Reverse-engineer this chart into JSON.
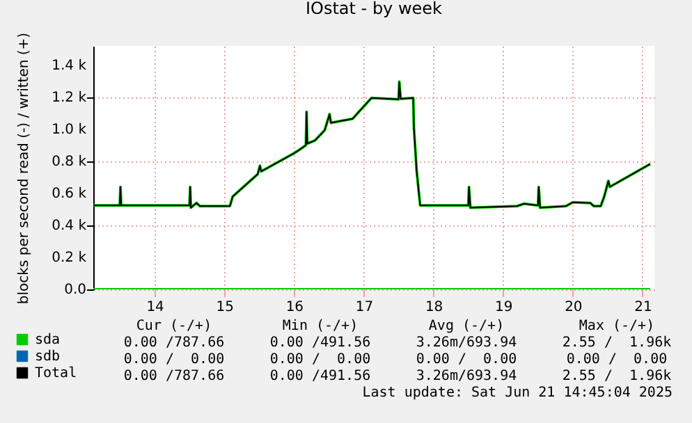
{
  "chart_data": {
    "type": "line",
    "title": "IOstat - by week",
    "ylabel": "blocks per second read (-) / written (+)",
    "xlim": [
      13.12,
      21.17
    ],
    "xticks": [
      14,
      15,
      16,
      17,
      18,
      19,
      20,
      21
    ],
    "ylim": [
      0,
      1520
    ],
    "yticks": [
      {
        "value": 0,
        "label": "0.0"
      },
      {
        "value": 200,
        "label": "0.2 k"
      },
      {
        "value": 400,
        "label": "0.4 k"
      },
      {
        "value": 600,
        "label": "0.6 k"
      },
      {
        "value": 800,
        "label": "0.8 k"
      },
      {
        "value": 1000,
        "label": "1.0 k"
      },
      {
        "value": 1200,
        "label": "1.2 k"
      },
      {
        "value": 1400,
        "label": "1.4 k"
      }
    ],
    "grid": true,
    "legend": "bottom left",
    "marker": "none",
    "line_style": "solid",
    "series": [
      {
        "name": "sda",
        "color": "#00cc00",
        "x": [
          13.12,
          13.5,
          13.51,
          13.52,
          14.5,
          14.51,
          14.52,
          14.6,
          14.65,
          15.08,
          15.12,
          15.48,
          15.51,
          15.53,
          16.0,
          16.05,
          16.17,
          16.18,
          16.19,
          16.3,
          16.44,
          16.51,
          16.53,
          16.84,
          17.11,
          17.5,
          17.51,
          17.53,
          17.71,
          17.72,
          17.76,
          17.81,
          18.5,
          18.51,
          18.53,
          19.2,
          19.3,
          19.5,
          19.51,
          19.53,
          19.9,
          20.0,
          20.25,
          20.3,
          20.4,
          20.45,
          20.51,
          20.53,
          21.11
        ],
        "values": [
          524,
          524,
          640,
          524,
          524,
          640,
          510,
          540,
          520,
          520,
          580,
          720,
          772,
          737,
          850,
          864,
          900,
          1109,
          910,
          930,
          994,
          1094,
          1040,
          1065,
          1195,
          1187,
          1296,
          1190,
          1195,
          1008,
          735,
          524,
          524,
          640,
          510,
          520,
          535,
          524,
          640,
          510,
          520,
          544,
          540,
          520,
          520,
          580,
          677,
          640,
          783
        ]
      },
      {
        "name": "sdb",
        "color": "#0066b3"
      },
      {
        "color": "#00cc00",
        "x": [
          13.12,
          21.11
        ],
        "values": [
          0,
          0
        ]
      },
      {
        "name": "Total",
        "color": "#000000",
        "x": [
          13.12,
          13.5,
          13.51,
          13.52,
          14.5,
          14.51,
          14.52,
          14.6,
          14.65,
          15.08,
          15.12,
          15.48,
          15.51,
          15.53,
          16.0,
          16.05,
          16.17,
          16.18,
          16.19,
          16.3,
          16.44,
          16.51,
          16.53,
          16.84,
          17.11,
          17.5,
          17.51,
          17.53,
          17.71,
          17.72,
          17.76,
          17.81,
          18.5,
          18.51,
          18.53,
          19.2,
          19.3,
          19.5,
          19.51,
          19.53,
          19.9,
          20.0,
          20.25,
          20.3,
          20.4,
          20.45,
          20.51,
          20.53,
          21.11
        ],
        "values": [
          524,
          524,
          640,
          524,
          524,
          640,
          510,
          540,
          520,
          520,
          580,
          720,
          772,
          737,
          850,
          864,
          900,
          1109,
          910,
          930,
          994,
          1094,
          1040,
          1065,
          1195,
          1187,
          1296,
          1190,
          1195,
          1008,
          735,
          524,
          524,
          640,
          510,
          520,
          535,
          524,
          640,
          510,
          520,
          544,
          540,
          520,
          520,
          580,
          677,
          640,
          783
        ]
      }
    ],
    "annotations": [
      "Cur (-/+)",
      "Min (-/+)",
      "Avg (-/+)",
      "Max (-/+)",
      "0.00 /787.66",
      "0.00 /491.56",
      "3.26m/693.94",
      "2.55 /  1.96k",
      "0.00 /  0.00",
      "0.00 /  0.00",
      "0.00 /  0.00",
      "0.00 /  0.00",
      "0.00 /787.66",
      "0.00 /491.56",
      "3.26m/693.94",
      "2.55 /  1.96k",
      "Last update: Sat Jun 21 14:45:04 2025"
    ]
  }
}
